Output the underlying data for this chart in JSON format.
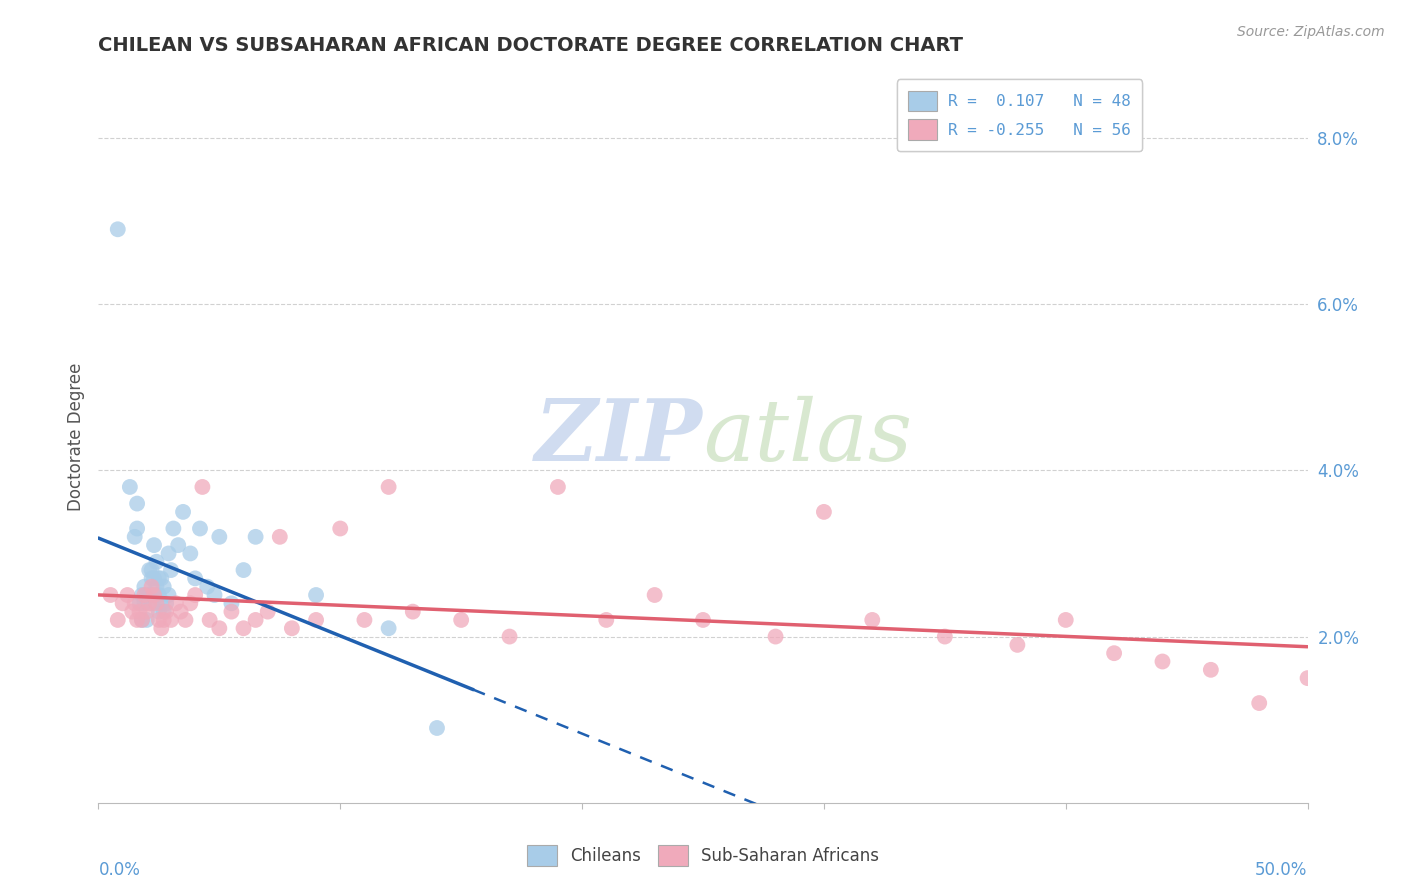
{
  "title": "CHILEAN VS SUBSAHARAN AFRICAN DOCTORATE DEGREE CORRELATION CHART",
  "source": "Source: ZipAtlas.com",
  "ylabel": "Doctorate Degree",
  "yticks": [
    "2.0%",
    "4.0%",
    "6.0%",
    "8.0%"
  ],
  "ytick_vals": [
    0.02,
    0.04,
    0.06,
    0.08
  ],
  "xlim": [
    0.0,
    0.5
  ],
  "ylim": [
    0.0,
    0.088
  ],
  "legend_r1": "R =  0.107   N = 48",
  "legend_r2": "R = -0.255   N = 56",
  "blue_color": "#A8CCE8",
  "pink_color": "#F0AABB",
  "blue_line_color": "#2060B0",
  "pink_line_color": "#E06070",
  "watermark_zip": "ZIP",
  "watermark_atlas": "atlas",
  "chilean_x": [
    0.008,
    0.013,
    0.015,
    0.016,
    0.016,
    0.017,
    0.018,
    0.018,
    0.019,
    0.019,
    0.02,
    0.02,
    0.021,
    0.021,
    0.022,
    0.022,
    0.022,
    0.023,
    0.023,
    0.023,
    0.024,
    0.024,
    0.025,
    0.025,
    0.025,
    0.026,
    0.026,
    0.027,
    0.027,
    0.028,
    0.029,
    0.029,
    0.03,
    0.031,
    0.033,
    0.035,
    0.038,
    0.04,
    0.042,
    0.045,
    0.048,
    0.05,
    0.055,
    0.06,
    0.065,
    0.09,
    0.12,
    0.14
  ],
  "chilean_y": [
    0.069,
    0.038,
    0.032,
    0.036,
    0.033,
    0.024,
    0.025,
    0.022,
    0.024,
    0.026,
    0.025,
    0.022,
    0.028,
    0.025,
    0.028,
    0.027,
    0.024,
    0.031,
    0.027,
    0.025,
    0.029,
    0.026,
    0.027,
    0.025,
    0.023,
    0.027,
    0.024,
    0.026,
    0.023,
    0.024,
    0.03,
    0.025,
    0.028,
    0.033,
    0.031,
    0.035,
    0.03,
    0.027,
    0.033,
    0.026,
    0.025,
    0.032,
    0.024,
    0.028,
    0.032,
    0.025,
    0.021,
    0.009
  ],
  "subsaharan_x": [
    0.005,
    0.008,
    0.01,
    0.012,
    0.014,
    0.015,
    0.016,
    0.017,
    0.018,
    0.019,
    0.02,
    0.021,
    0.022,
    0.023,
    0.024,
    0.025,
    0.026,
    0.027,
    0.028,
    0.03,
    0.032,
    0.034,
    0.036,
    0.038,
    0.04,
    0.043,
    0.046,
    0.05,
    0.055,
    0.06,
    0.065,
    0.07,
    0.075,
    0.08,
    0.09,
    0.1,
    0.11,
    0.12,
    0.13,
    0.15,
    0.17,
    0.19,
    0.21,
    0.23,
    0.25,
    0.28,
    0.3,
    0.32,
    0.35,
    0.38,
    0.4,
    0.42,
    0.44,
    0.46,
    0.48,
    0.5
  ],
  "subsaharan_y": [
    0.025,
    0.022,
    0.024,
    0.025,
    0.023,
    0.024,
    0.022,
    0.023,
    0.022,
    0.025,
    0.023,
    0.024,
    0.026,
    0.025,
    0.024,
    0.022,
    0.021,
    0.022,
    0.023,
    0.022,
    0.024,
    0.023,
    0.022,
    0.024,
    0.025,
    0.038,
    0.022,
    0.021,
    0.023,
    0.021,
    0.022,
    0.023,
    0.032,
    0.021,
    0.022,
    0.033,
    0.022,
    0.038,
    0.023,
    0.022,
    0.02,
    0.038,
    0.022,
    0.025,
    0.022,
    0.02,
    0.035,
    0.022,
    0.02,
    0.019,
    0.022,
    0.018,
    0.017,
    0.016,
    0.012,
    0.015
  ]
}
